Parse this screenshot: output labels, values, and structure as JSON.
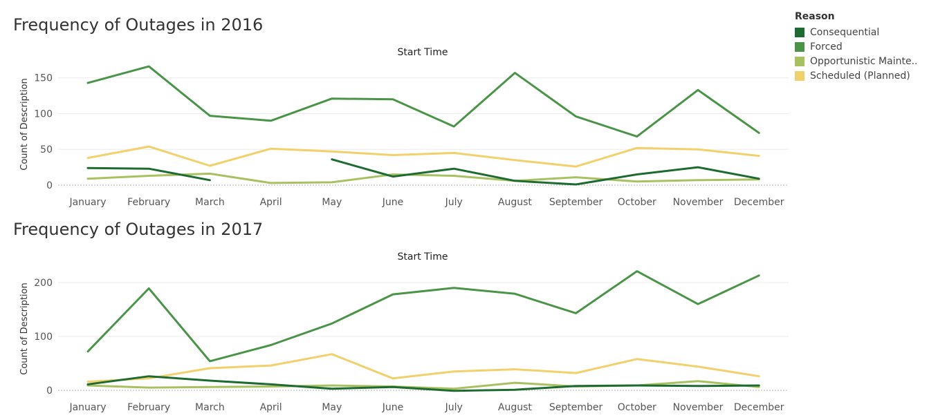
{
  "legend": {
    "title": "Reason",
    "items": [
      {
        "label": "Consequential",
        "color": "#1e6b32"
      },
      {
        "label": "Forced",
        "color": "#4a9447"
      },
      {
        "label": "Opportunistic Mainte..",
        "color": "#a8c160"
      },
      {
        "label": "Scheduled (Planned)",
        "color": "#f2d06b"
      }
    ]
  },
  "chart_data": [
    {
      "type": "line",
      "title": "Frequency of Outages in 2016",
      "xlabel": "Start Time",
      "ylabel": "Count of Description",
      "categories": [
        "January",
        "February",
        "March",
        "April",
        "May",
        "June",
        "July",
        "August",
        "September",
        "October",
        "November",
        "December"
      ],
      "yticks": [
        0,
        50,
        100,
        150
      ],
      "ylim": [
        0,
        170
      ],
      "grid": true,
      "series": [
        {
          "name": "Forced",
          "color": "#4a9447",
          "values": [
            143,
            166,
            97,
            90,
            121,
            120,
            82,
            157,
            96,
            68,
            133,
            73
          ]
        },
        {
          "name": "Scheduled (Planned)",
          "color": "#f2d06b",
          "values": [
            38,
            54,
            27,
            51,
            47,
            42,
            45,
            35,
            26,
            52,
            50,
            41
          ]
        },
        {
          "name": "Opportunistic Mainte..",
          "color": "#a8c160",
          "values": [
            9,
            13,
            16,
            3,
            4,
            15,
            13,
            6,
            11,
            5,
            7,
            8
          ]
        },
        {
          "name": "Consequential",
          "color": "#1e6b32",
          "values": [
            24,
            23,
            7,
            null,
            36,
            12,
            23,
            6,
            1,
            15,
            25,
            9
          ]
        }
      ]
    },
    {
      "type": "line",
      "title": "Frequency of Outages in 2017",
      "xlabel": "Start Time",
      "ylabel": "Count of Description",
      "categories": [
        "January",
        "February",
        "March",
        "April",
        "May",
        "June",
        "July",
        "August",
        "September",
        "October",
        "November",
        "December"
      ],
      "yticks": [
        0,
        100,
        200
      ],
      "ylim": [
        0,
        232
      ],
      "grid": true,
      "series": [
        {
          "name": "Forced",
          "color": "#4a9447",
          "values": [
            72,
            189,
            54,
            84,
            124,
            178,
            190,
            179,
            143,
            221,
            160,
            213
          ]
        },
        {
          "name": "Scheduled (Planned)",
          "color": "#f2d06b",
          "values": [
            16,
            22,
            41,
            46,
            67,
            22,
            35,
            39,
            32,
            58,
            44,
            26
          ]
        },
        {
          "name": "Opportunistic Mainte..",
          "color": "#a8c160",
          "values": [
            9,
            5,
            6,
            7,
            9,
            7,
            3,
            14,
            7,
            9,
            17,
            6
          ]
        },
        {
          "name": "Consequential",
          "color": "#1e6b32",
          "values": [
            11,
            26,
            18,
            11,
            3,
            6,
            -1,
            1,
            8,
            9,
            8,
            9
          ]
        }
      ]
    }
  ]
}
